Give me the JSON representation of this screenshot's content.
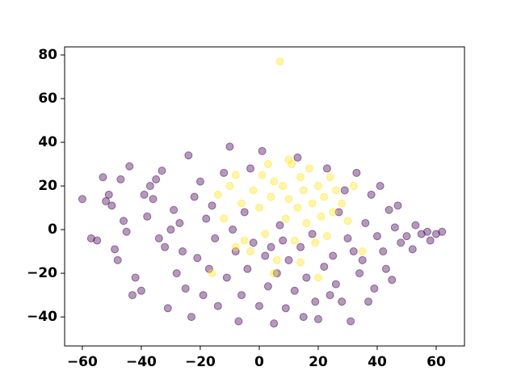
{
  "chart_data": {
    "type": "scatter",
    "series": [
      {
        "color": "#440154",
        "x": [
          -60,
          -57,
          -55,
          -53,
          -52,
          -51,
          -50,
          -49,
          -48,
          -47,
          -46,
          -45,
          -44,
          -42,
          -40,
          -39,
          -37,
          -36,
          -35,
          -34,
          -33,
          -31,
          -30,
          -29,
          -28,
          -27,
          -25,
          -24,
          -23,
          -22,
          -21,
          -20,
          -19,
          -18,
          -17,
          -16,
          -15,
          -14,
          -12,
          -11,
          -10,
          -9,
          -8,
          -7,
          -6,
          -5,
          -4,
          -3,
          -2,
          0,
          1,
          2,
          3,
          4,
          5,
          6,
          7,
          8,
          9,
          10,
          12,
          13,
          14,
          15,
          16,
          18,
          19,
          20,
          22,
          23,
          24,
          25,
          26,
          27,
          28,
          29,
          30,
          31,
          32,
          33,
          34,
          35,
          36,
          37,
          38,
          39,
          40,
          41,
          42,
          43,
          44,
          45,
          46,
          47,
          48,
          50,
          52,
          53,
          55,
          57,
          58,
          60,
          62,
          -26,
          -32,
          -43,
          -38
        ],
        "values": [
          14,
          -4,
          -5,
          24,
          13,
          16,
          11,
          -9,
          -14,
          23,
          4,
          -1,
          29,
          -22,
          -28,
          16,
          20,
          14,
          23,
          -4,
          27,
          -36,
          0,
          9,
          -20,
          3,
          -27,
          34,
          -40,
          15,
          -13,
          22,
          -30,
          5,
          -18,
          11,
          -4,
          -35,
          26,
          -22,
          38,
          0,
          -10,
          -42,
          -30,
          8,
          -18,
          28,
          -6,
          -35,
          36,
          -12,
          -26,
          -8,
          -43,
          -20,
          2,
          -5,
          -36,
          -14,
          -28,
          33,
          -8,
          -40,
          -22,
          -2,
          -33,
          -41,
          -17,
          28,
          -30,
          -12,
          -25,
          8,
          -33,
          18,
          -4,
          -42,
          -10,
          26,
          -20,
          -14,
          3,
          -33,
          16,
          -27,
          -3,
          20,
          -10,
          -18,
          9,
          -23,
          1,
          11,
          -6,
          -3,
          -9,
          2,
          -2,
          -1,
          -5,
          -2,
          -1,
          -10,
          -8,
          -30,
          6
        ]
      },
      {
        "color": "#fde725",
        "x": [
          -14,
          -12,
          -10,
          -8,
          -6,
          -5,
          -3,
          -2,
          0,
          1,
          2,
          3,
          4,
          5,
          6,
          7,
          8,
          9,
          10,
          11,
          12,
          13,
          14,
          15,
          16,
          17,
          18,
          19,
          20,
          21,
          22,
          23,
          24,
          25,
          26,
          28,
          30,
          32,
          35,
          -16,
          5,
          20,
          -8,
          10,
          14
        ],
        "values": [
          16,
          5,
          20,
          25,
          12,
          -5,
          -10,
          18,
          10,
          25,
          -2,
          30,
          15,
          22,
          -14,
          77,
          20,
          5,
          14,
          30,
          -5,
          10,
          24,
          18,
          3,
          28,
          12,
          -6,
          20,
          6,
          15,
          -3,
          24,
          8,
          18,
          12,
          4,
          20,
          -10,
          -20,
          -20,
          -22,
          -8,
          32,
          -15
        ]
      }
    ],
    "xlim": [
      -66,
      69.6
    ],
    "ylim": [
      -53.3,
      83.7
    ],
    "xticks": [
      {
        "value": -60,
        "label": "−60"
      },
      {
        "value": -40,
        "label": "−40"
      },
      {
        "value": -20,
        "label": "−20"
      },
      0,
      20,
      40,
      60
    ],
    "yticks": [
      {
        "value": -40,
        "label": "−40"
      },
      {
        "value": -20,
        "label": "−20"
      },
      0,
      20,
      40,
      60,
      80
    ]
  }
}
